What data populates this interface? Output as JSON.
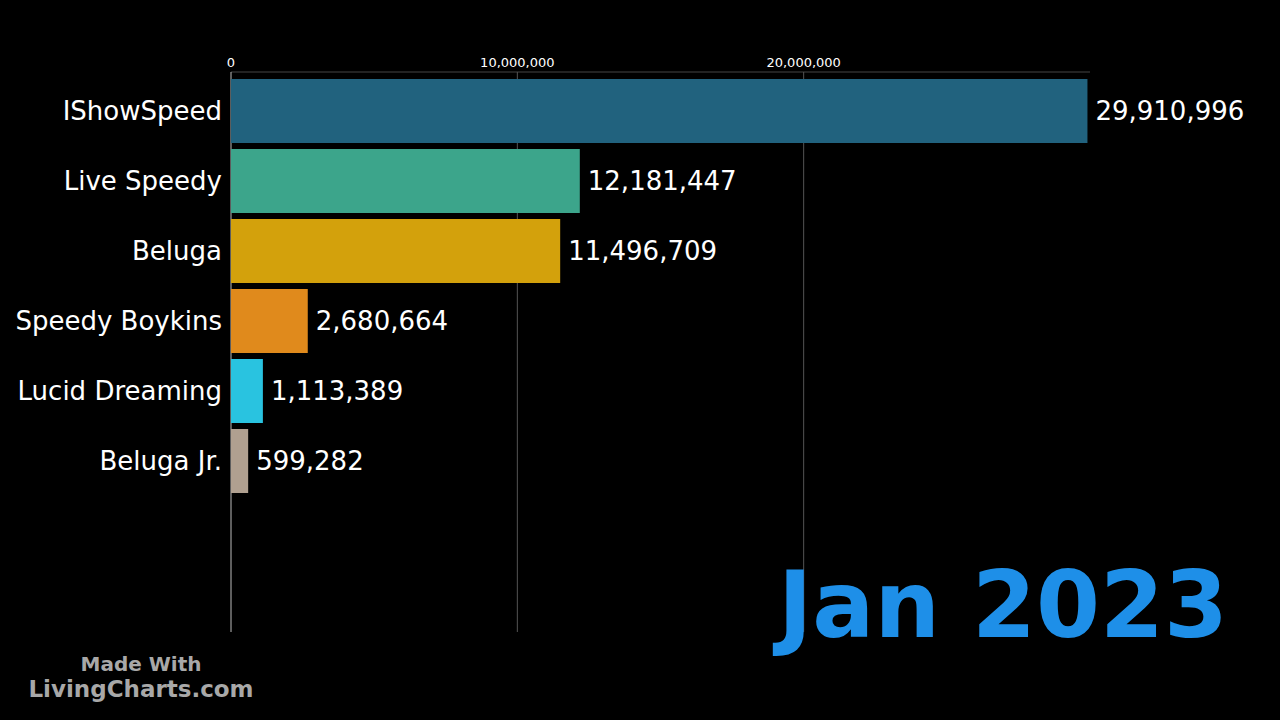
{
  "chart_data": {
    "type": "bar",
    "orientation": "horizontal",
    "categories": [
      "IShowSpeed",
      "Live Speedy",
      "Beluga",
      "Speedy Boykins",
      "Lucid Dreaming",
      "Beluga Jr."
    ],
    "values": [
      29910996,
      12181447,
      11496709,
      2680664,
      1113389,
      599282
    ],
    "value_labels": [
      "29,910,996",
      "12,181,447",
      "11,496,709",
      "2,680,664",
      "1,113,389",
      "599,282"
    ],
    "colors": [
      "#21627e",
      "#3ca58b",
      "#d3a10c",
      "#e08a1c",
      "#29c3e0",
      "#b0a090"
    ],
    "xlim": [
      0,
      30000000
    ],
    "xticks": [
      0,
      {
        "value": 10000000,
        "label": "10,000,000"
      },
      {
        "value": 20000000,
        "label": "20,000,000"
      }
    ],
    "grid": true,
    "data_labels": true,
    "annotations": [
      "Jan 2023",
      "Made With",
      "LivingCharts.com"
    ]
  }
}
